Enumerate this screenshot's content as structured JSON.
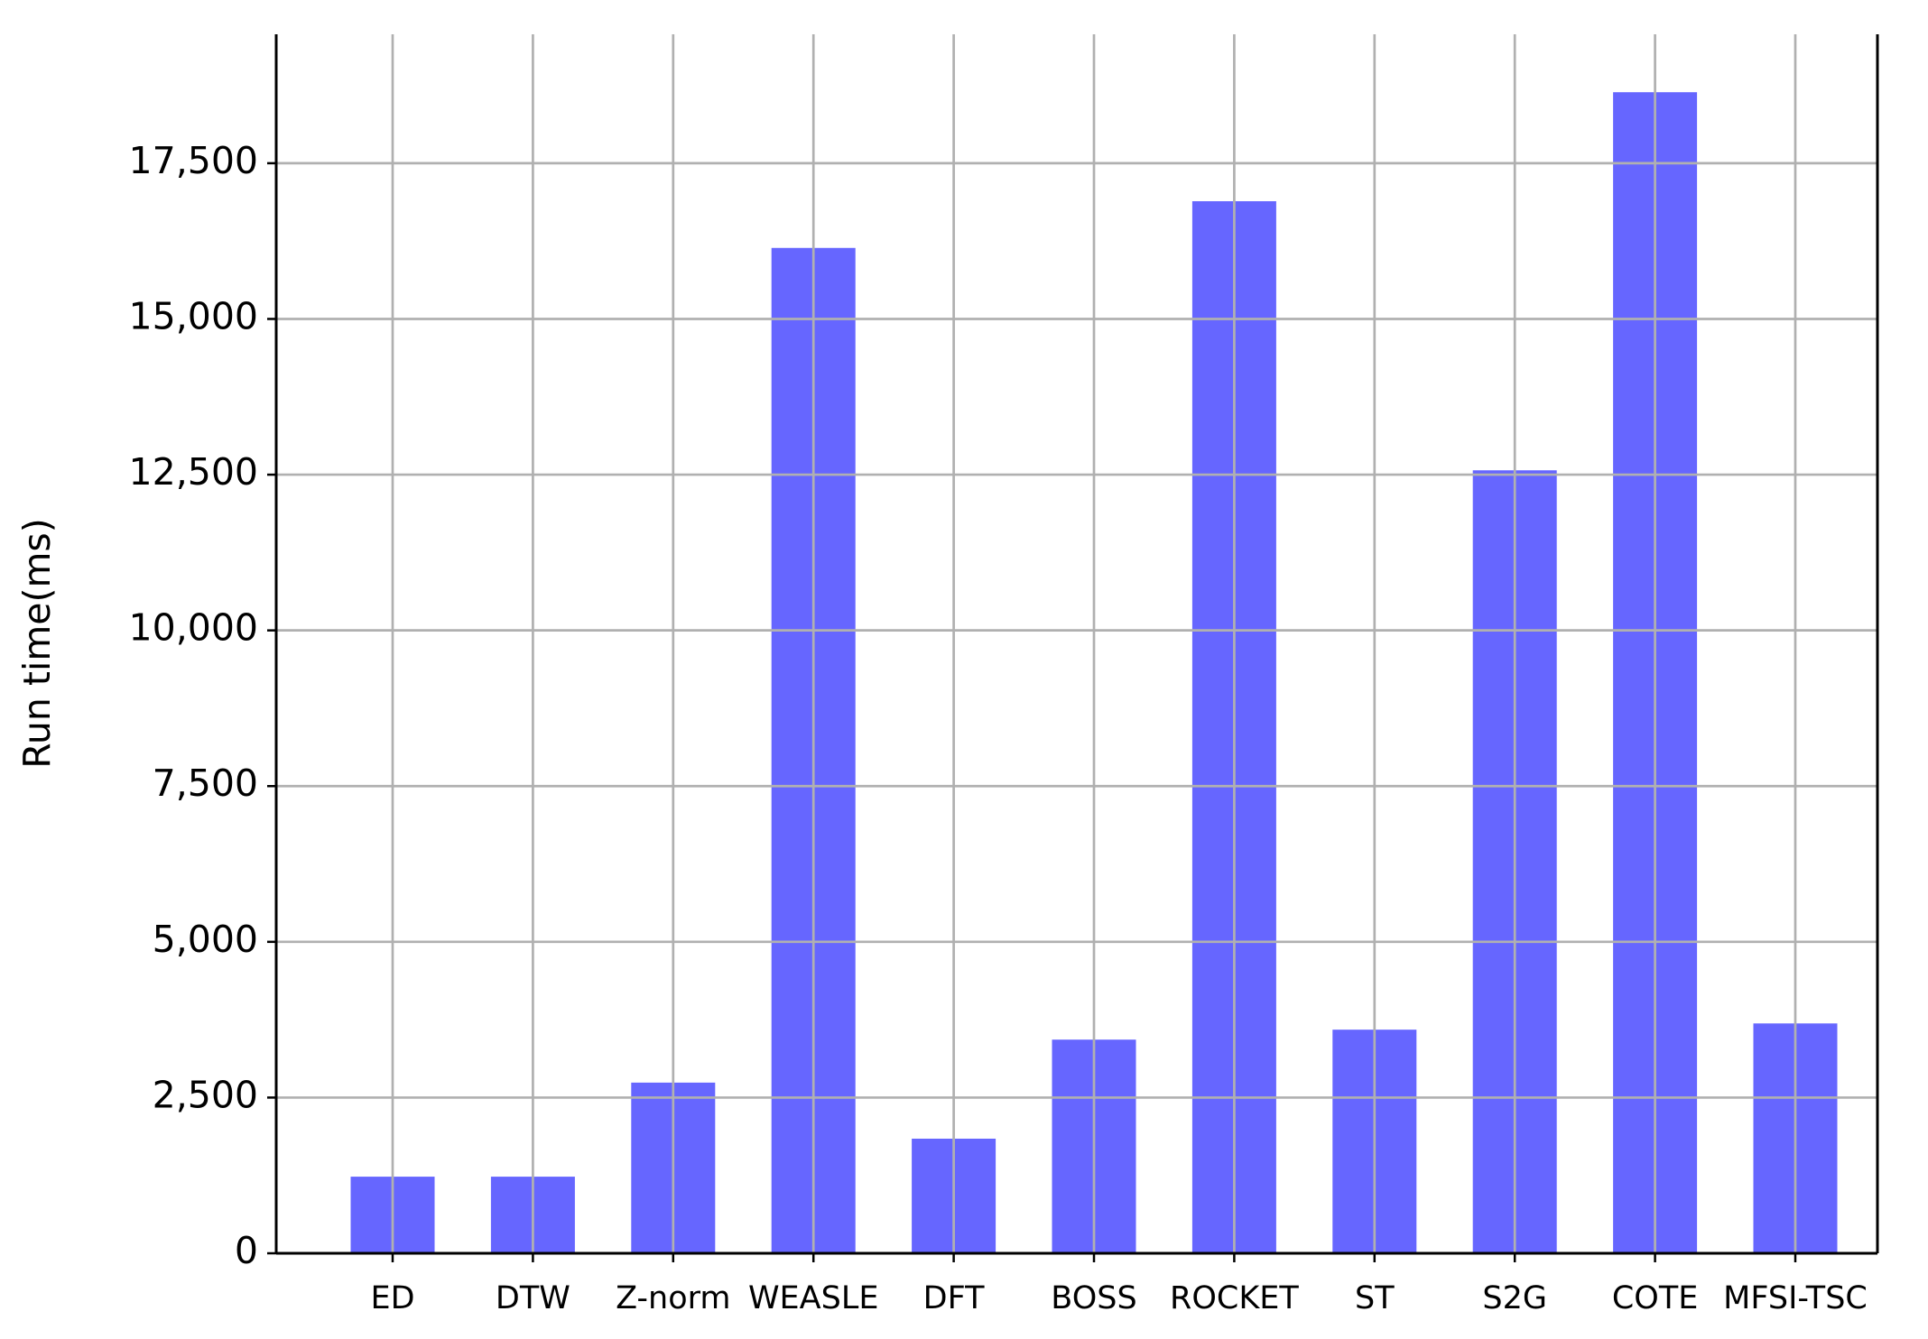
{
  "chart_data": {
    "type": "bar",
    "y_label": "Run time(ms)",
    "categories": [
      "ED",
      "DTW",
      "Z-norm",
      "WEASLE",
      "DFT",
      "BOSS",
      "ROCKET",
      "ST",
      "S2G",
      "COTE",
      "MFSI-TSC"
    ],
    "values": [
      1230,
      1230,
      2740,
      16140,
      1840,
      3430,
      16890,
      3590,
      12570,
      18640,
      3690
    ],
    "color": "#6666ff",
    "ylim": [
      0,
      19570
    ],
    "yticks": [
      0,
      {
        "value": 2500,
        "label": "2,500"
      },
      {
        "value": 5000,
        "label": "5,000"
      },
      {
        "value": 7500,
        "label": "7,500"
      },
      {
        "value": 10000,
        "label": "10,000"
      },
      {
        "value": 12500,
        "label": "12,500"
      },
      {
        "value": 15000,
        "label": "15,000"
      },
      {
        "value": 17500,
        "label": "17,500"
      }
    ],
    "grid": true
  }
}
